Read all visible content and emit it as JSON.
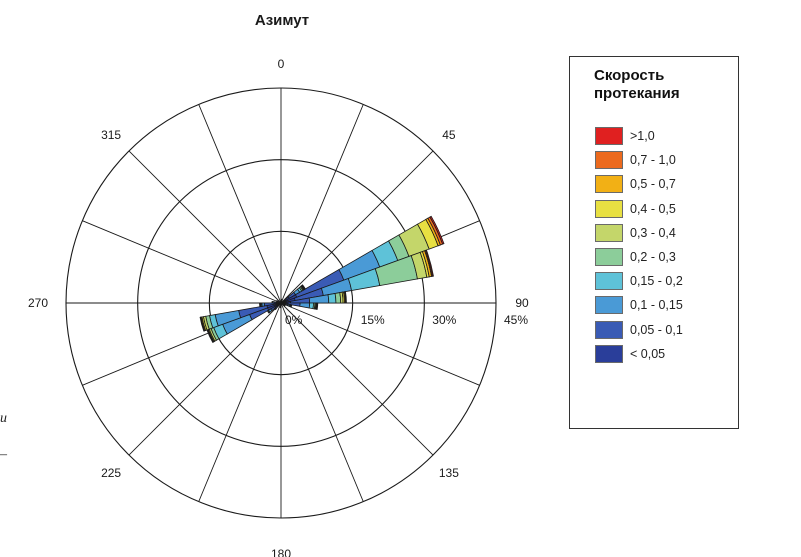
{
  "chart_data": {
    "type": "polar-bar",
    "title": "Азимут",
    "angular_labels": [
      {
        "angle": 0,
        "text": "0"
      },
      {
        "angle": 45,
        "text": "45"
      },
      {
        "angle": 90,
        "text": "90"
      },
      {
        "angle": 135,
        "text": "135"
      },
      {
        "angle": 180,
        "text": "180"
      },
      {
        "angle": 225,
        "text": "225"
      },
      {
        "angle": 270,
        "text": "270"
      },
      {
        "angle": 315,
        "text": "315"
      }
    ],
    "radial_labels": [
      {
        "value": 0,
        "text": "0%"
      },
      {
        "value": 15,
        "text": "15%"
      },
      {
        "value": 30,
        "text": "30%"
      },
      {
        "value": 45,
        "text": "45%"
      }
    ],
    "rmax": 45,
    "sector_width_deg": 10,
    "spokes_every_deg": 22.5,
    "classes": [
      "< 0,05",
      "0,05 - 0,1",
      "0,1 - 0,15",
      "0,15 - 0,2",
      "0,2 - 0,3",
      "0,3 - 0,4",
      "0,4 - 0,5",
      "0,5 - 0,7",
      "0,7 - 1,0",
      ">1,0"
    ],
    "class_colors": [
      "#2a3e9a",
      "#3a5bb5",
      "#4a9ad6",
      "#5ec2d8",
      "#8ccd9a",
      "#c4d66a",
      "#e8e042",
      "#f2b015",
      "#ec6a1e",
      "#e02020"
    ],
    "sectors": [
      {
        "direction": 65,
        "cumulative": [
          3.5,
          14,
          22,
          26,
          28.5,
          33,
          35,
          35.5,
          36,
          36.3
        ]
      },
      {
        "direction": 75,
        "cumulative": [
          3,
          9,
          15,
          21,
          29,
          31,
          31.5,
          32,
          32.2,
          32.4
        ]
      },
      {
        "direction": 85,
        "cumulative": [
          2,
          6,
          10,
          11.5,
          12.5,
          13,
          13.3,
          13.5,
          13.6,
          13.7
        ]
      },
      {
        "direction": 95,
        "cumulative": [
          1.5,
          4,
          6,
          6.8,
          7.1,
          7.3,
          7.4,
          7.5,
          7.6,
          7.7
        ]
      },
      {
        "direction": 55,
        "cumulative": [
          2,
          3.5,
          4.5,
          5,
          5.3,
          5.5,
          5.6,
          5.7,
          5.8,
          5.9
        ]
      },
      {
        "direction": 105,
        "cumulative": [
          1,
          1.5,
          1.9,
          2,
          2.1,
          2.2,
          2.3,
          2.3,
          2.3,
          2.3
        ]
      },
      {
        "direction": 245,
        "cumulative": [
          3,
          7,
          13,
          15,
          15.6,
          16,
          16.2,
          16.3,
          16.4,
          16.5
        ]
      },
      {
        "direction": 255,
        "cumulative": [
          3,
          9,
          14,
          15.2,
          16,
          16.5,
          16.8,
          17,
          17.1,
          17.2
        ]
      },
      {
        "direction": 265,
        "cumulative": [
          1.5,
          3.5,
          4,
          4.2,
          4.3,
          4.4,
          4.5,
          4.5,
          4.5,
          4.5
        ]
      },
      {
        "direction": 235,
        "cumulative": [
          1.5,
          2.5,
          3,
          3.2,
          3.3,
          3.3,
          3.3,
          3.3,
          3.3,
          3.3
        ]
      },
      {
        "direction": 275,
        "cumulative": [
          1,
          1.5,
          1.8,
          1.9,
          1.9,
          1.9,
          1.9,
          1.9,
          1.9,
          1.9
        ]
      },
      {
        "direction": 225,
        "cumulative": [
          1,
          1.5,
          1.7,
          1.8,
          1.8,
          1.8,
          1.8,
          1.8,
          1.8,
          1.8
        ]
      },
      {
        "direction": 5,
        "cumulative": [
          0.7,
          0.8,
          0.8,
          0.8,
          0.8,
          0.8,
          0.8,
          0.8,
          0.8,
          0.8
        ]
      },
      {
        "direction": 185,
        "cumulative": [
          0.8,
          1.0,
          1.0,
          1.0,
          1.0,
          1.0,
          1.0,
          1.0,
          1.0,
          1.0
        ]
      },
      {
        "direction": 295,
        "cumulative": [
          0.8,
          1.0,
          1.0,
          1.0,
          1.0,
          1.0,
          1.0,
          1.0,
          1.0,
          1.0
        ]
      },
      {
        "direction": 125,
        "cumulative": [
          0.8,
          1.0,
          1.0,
          1.0,
          1.0,
          1.0,
          1.0,
          1.0,
          1.0,
          1.0
        ]
      }
    ]
  },
  "legend": {
    "title": "Скорость протекания",
    "items": [
      {
        "label": ">1,0",
        "color": "#e02020"
      },
      {
        "label": "0,7 - 1,0",
        "color": "#ec6a1e"
      },
      {
        "label": "0,5 - 0,7",
        "color": "#f2b015"
      },
      {
        "label": "0,4 - 0,5",
        "color": "#e8e042"
      },
      {
        "label": "0,3 - 0,4",
        "color": "#c4d66a"
      },
      {
        "label": "0,2 - 0,3",
        "color": "#8ccd9a"
      },
      {
        "label": "0,15 - 0,2",
        "color": "#5ec2d8"
      },
      {
        "label": "0,1 - 0,15",
        "color": "#4a9ad6"
      },
      {
        "label": "0,05 - 0,1",
        "color": "#3a5bb5"
      },
      {
        "label": "< 0,05",
        "color": "#2a3e9a"
      }
    ]
  },
  "page_fragments": {
    "italic_letter": "и",
    "dash": "–"
  }
}
